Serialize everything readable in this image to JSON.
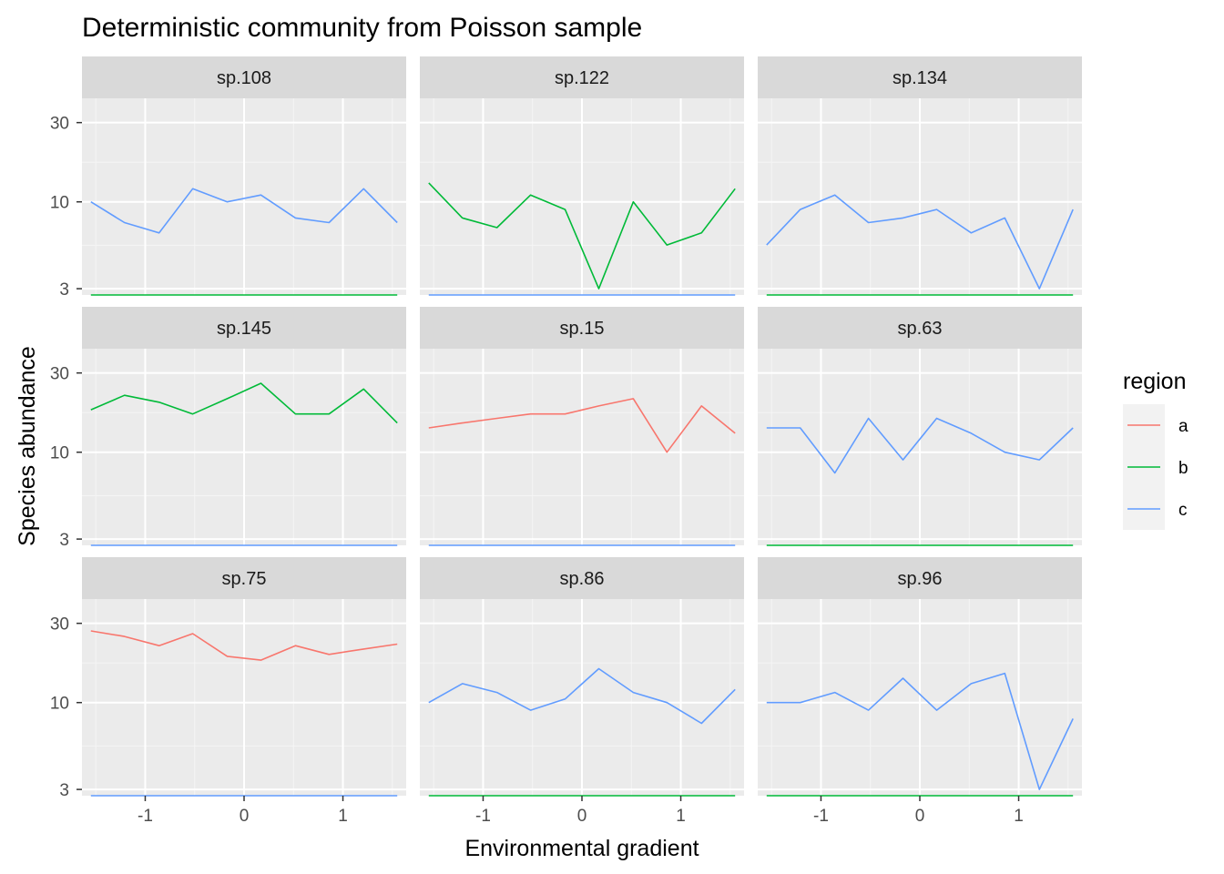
{
  "chart_data": {
    "type": "line",
    "title": "Deterministic community from Poisson sample",
    "xlabel": "Environmental gradient",
    "ylabel": "Species abundance",
    "y_scale": "log10",
    "ylim": [
      2.75,
      42
    ],
    "xlim": [
      -1.64,
      1.64
    ],
    "x_ticks": [
      -1,
      0,
      1
    ],
    "x_tick_labels": [
      "-1",
      "0",
      "1"
    ],
    "y_ticks": [
      3,
      10,
      30
    ],
    "y_tick_labels": [
      "3",
      "10",
      "30"
    ],
    "grid": true,
    "legend": {
      "title": "region",
      "position": "right",
      "entries": [
        {
          "label": "a",
          "color": "#F8766D"
        },
        {
          "label": "b",
          "color": "#00BA38"
        },
        {
          "label": "c",
          "color": "#619CFF"
        }
      ]
    },
    "x": [
      -1.55,
      -1.21,
      -0.86,
      -0.52,
      -0.17,
      0.17,
      0.52,
      0.86,
      1.21,
      1.55
    ],
    "facets": [
      {
        "label": "sp.108",
        "series": [
          {
            "region": "c",
            "values": [
              10,
              7.5,
              6.5,
              12,
              10,
              11,
              8,
              7.5,
              12,
              7.5
            ]
          },
          {
            "region": "b",
            "values": [
              2.75,
              2.75,
              2.75,
              2.75,
              2.75,
              2.75,
              2.75,
              2.75,
              2.75,
              2.75
            ]
          }
        ]
      },
      {
        "label": "sp.122",
        "series": [
          {
            "region": "b",
            "values": [
              13,
              8,
              7,
              11,
              9,
              3,
              10,
              5.5,
              6.5,
              12
            ]
          },
          {
            "region": "c",
            "values": [
              2.75,
              2.75,
              2.75,
              2.75,
              2.75,
              2.75,
              2.75,
              2.75,
              2.75,
              2.75
            ]
          }
        ]
      },
      {
        "label": "sp.134",
        "series": [
          {
            "region": "c",
            "values": [
              5.5,
              9,
              11,
              7.5,
              8,
              9,
              6.5,
              8,
              3,
              9
            ]
          },
          {
            "region": "b",
            "values": [
              2.75,
              2.75,
              2.75,
              2.75,
              2.75,
              2.75,
              2.75,
              2.75,
              2.75,
              2.75
            ]
          }
        ]
      },
      {
        "label": "sp.145",
        "series": [
          {
            "region": "b",
            "values": [
              18,
              22,
              20,
              17,
              21,
              26,
              17,
              17,
              24,
              15
            ]
          },
          {
            "region": "c",
            "values": [
              2.75,
              2.75,
              2.75,
              2.75,
              2.75,
              2.75,
              2.75,
              2.75,
              2.75,
              2.75
            ]
          }
        ]
      },
      {
        "label": "sp.15",
        "series": [
          {
            "region": "a",
            "values": [
              14,
              15,
              16,
              17,
              17,
              19,
              21,
              10,
              19,
              13
            ]
          },
          {
            "region": "c",
            "values": [
              2.75,
              2.75,
              2.75,
              2.75,
              2.75,
              2.75,
              2.75,
              2.75,
              2.75,
              2.75
            ]
          }
        ]
      },
      {
        "label": "sp.63",
        "series": [
          {
            "region": "c",
            "values": [
              14,
              14,
              7.5,
              16,
              9,
              16,
              13,
              10,
              9,
              14
            ]
          },
          {
            "region": "b",
            "values": [
              2.75,
              2.75,
              2.75,
              2.75,
              2.75,
              2.75,
              2.75,
              2.75,
              2.75,
              2.75
            ]
          }
        ]
      },
      {
        "label": "sp.75",
        "series": [
          {
            "region": "a",
            "values": [
              27,
              25,
              22,
              26,
              19,
              18,
              22,
              19.5,
              21,
              22.5
            ]
          },
          {
            "region": "c",
            "values": [
              2.75,
              2.75,
              2.75,
              2.75,
              2.75,
              2.75,
              2.75,
              2.75,
              2.75,
              2.75
            ]
          }
        ]
      },
      {
        "label": "sp.86",
        "series": [
          {
            "region": "c",
            "values": [
              10,
              13,
              11.5,
              9,
              10.5,
              16,
              11.5,
              10,
              7.5,
              12
            ]
          },
          {
            "region": "b",
            "values": [
              2.75,
              2.75,
              2.75,
              2.75,
              2.75,
              2.75,
              2.75,
              2.75,
              2.75,
              2.75
            ]
          }
        ]
      },
      {
        "label": "sp.96",
        "series": [
          {
            "region": "c",
            "values": [
              10,
              10,
              11.5,
              9,
              14,
              9,
              13,
              15,
              3,
              8
            ]
          },
          {
            "region": "b",
            "values": [
              2.75,
              2.75,
              2.75,
              2.75,
              2.75,
              2.75,
              2.75,
              2.75,
              2.75,
              2.75
            ]
          }
        ]
      }
    ]
  }
}
